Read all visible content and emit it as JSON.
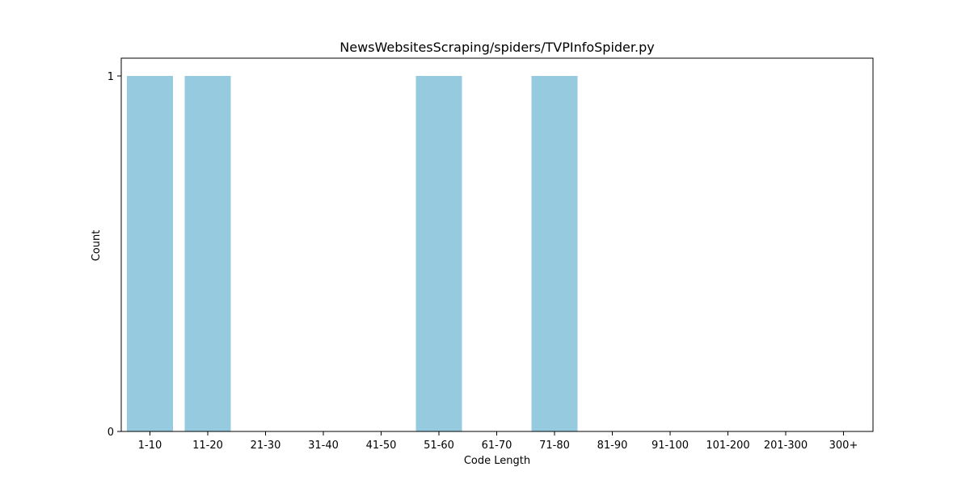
{
  "colors": {
    "bar": "#96CADF",
    "axis": "#000000",
    "background": "#ffffff"
  },
  "chart_data": {
    "type": "bar",
    "title": "NewsWebsitesScraping/spiders/TVPInfoSpider.py",
    "xlabel": "Code Length",
    "ylabel": "Count",
    "categories": [
      "1-10",
      "11-20",
      "21-30",
      "31-40",
      "41-50",
      "51-60",
      "61-70",
      "71-80",
      "81-90",
      "91-100",
      "101-200",
      "201-300",
      "300+"
    ],
    "values": [
      1,
      1,
      0,
      0,
      0,
      1,
      0,
      1,
      0,
      0,
      0,
      0,
      0
    ],
    "ylim": [
      0,
      1
    ],
    "yticks": [
      "0",
      "1"
    ],
    "grid": false,
    "legend": "none"
  }
}
